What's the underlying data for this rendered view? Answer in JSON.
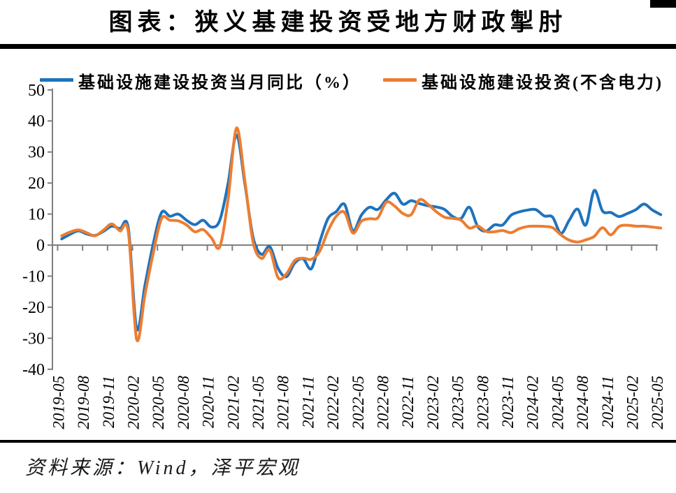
{
  "title": "图表：狭义基建投资受地方财政掣肘",
  "source_note": "资料来源：Wind，泽平宏观",
  "legend": [
    {
      "label": "基础设施建设投资当月同比（%）",
      "color": "#1E73BE"
    },
    {
      "label": "基础设施建设投资(不含电力)",
      "color": "#ED7D31"
    }
  ],
  "colors": {
    "blue": "#1E73BE",
    "orange": "#ED7D31",
    "axis": "#7F7F7F",
    "text": "#000000"
  },
  "axes": {
    "y_ticks": [
      50,
      40,
      30,
      20,
      10,
      0,
      -10,
      -20,
      -30,
      -40
    ],
    "x_label_every_n_months": 3
  },
  "chart_data": {
    "type": "line",
    "title": "图表：狭义基建投资受地方财政掣肘",
    "smoothed": true,
    "grid": false,
    "legend_position": "top",
    "ylim": [
      -40,
      50
    ],
    "x": [
      "2019-05",
      "2019-06",
      "2019-07",
      "2019-08",
      "2019-09",
      "2019-10",
      "2019-11",
      "2019-12",
      "2020-01",
      "2020-02",
      "2020-03",
      "2020-04",
      "2020-05",
      "2020-06",
      "2020-07",
      "2020-08",
      "2020-09",
      "2020-10",
      "2020-11",
      "2020-12",
      "2021-01",
      "2021-02",
      "2021-03",
      "2021-04",
      "2021-05",
      "2021-06",
      "2021-07",
      "2021-08",
      "2021-09",
      "2021-10",
      "2021-11",
      "2021-12",
      "2022-01",
      "2022-02",
      "2022-03",
      "2022-04",
      "2022-05",
      "2022-06",
      "2022-07",
      "2022-08",
      "2022-09",
      "2022-10",
      "2022-11",
      "2022-12",
      "2023-01",
      "2023-02",
      "2023-03",
      "2023-04",
      "2023-05",
      "2023-06",
      "2023-07",
      "2023-08",
      "2023-09",
      "2023-10",
      "2023-11",
      "2023-12",
      "2024-01",
      "2024-02",
      "2024-03",
      "2024-04",
      "2024-05",
      "2024-06",
      "2024-07",
      "2024-08",
      "2024-09",
      "2024-10",
      "2024-11",
      "2024-12",
      "2025-01",
      "2025-02",
      "2025-03",
      "2025-04",
      "2025-05"
    ],
    "series": [
      {
        "name": "基础设施建设投资当月同比（%）",
        "color": "#1E73BE",
        "values": [
          2.0,
          3.5,
          4.6,
          3.6,
          3.1,
          4.4,
          6.1,
          5.3,
          5.4,
          -26.9,
          -13.0,
          0.5,
          10.5,
          9.3,
          10.0,
          8.0,
          6.6,
          8.0,
          5.8,
          8.0,
          20.0,
          35.5,
          20.0,
          2.5,
          -3.0,
          -0.5,
          -7.5,
          -10.2,
          -5.8,
          -4.4,
          -7.6,
          1.0,
          8.5,
          10.8,
          13.1,
          4.6,
          9.6,
          12.2,
          11.5,
          14.6,
          16.7,
          13.2,
          14.3,
          13.4,
          12.7,
          12.3,
          11.5,
          9.2,
          8.6,
          12.2,
          6.0,
          4.5,
          6.5,
          6.5,
          9.6,
          10.7,
          11.3,
          11.4,
          9.4,
          9.0,
          3.8,
          8.0,
          11.6,
          6.5,
          17.6,
          11.0,
          10.5,
          9.2,
          10.2,
          11.4,
          13.2,
          11.3,
          9.8
        ]
      },
      {
        "name": "基础设施建设投资(不含电力)",
        "color": "#ED7D31",
        "values": [
          3.0,
          4.2,
          4.9,
          4.0,
          3.0,
          4.8,
          6.8,
          4.6,
          4.2,
          -30.3,
          -16.0,
          -2.5,
          8.6,
          8.0,
          7.8,
          6.5,
          4.3,
          5.0,
          2.3,
          -0.5,
          15.0,
          37.7,
          21.0,
          1.0,
          -4.3,
          -1.6,
          -10.5,
          -9.3,
          -5.0,
          -4.2,
          -4.6,
          -2.0,
          4.5,
          9.3,
          10.5,
          3.9,
          7.7,
          8.5,
          8.8,
          13.8,
          12.6,
          10.2,
          9.8,
          14.6,
          13.2,
          10.8,
          9.0,
          8.6,
          8.0,
          5.5,
          6.2,
          4.4,
          4.3,
          4.7,
          4.0,
          5.3,
          6.0,
          6.1,
          6.0,
          5.6,
          3.3,
          1.6,
          1.0,
          1.7,
          2.8,
          5.6,
          3.3,
          6.0,
          6.4,
          6.1,
          6.1,
          5.8,
          5.5
        ]
      }
    ]
  }
}
